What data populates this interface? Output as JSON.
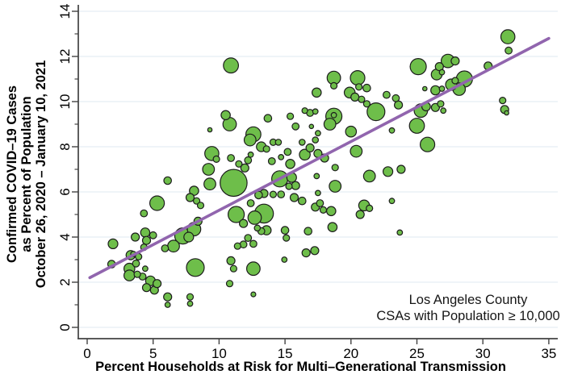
{
  "chart_data": {
    "type": "scatter",
    "title": "",
    "xlabel": "Percent Households at Risk for Multi–Generational Transmission",
    "ylabel_lines": [
      "Confirmed COVID–19 Cases",
      "as Percent of Population",
      "October 26, 2020 – January 10, 2021"
    ],
    "annotation": {
      "lines": [
        "Los Angeles County",
        "CSAs with Population ≥ 10,000"
      ]
    },
    "xlim": [
      0,
      35
    ],
    "ylim": [
      0,
      14
    ],
    "xticks": [
      0,
      5,
      10,
      15,
      20,
      25,
      30,
      35
    ],
    "yticks": [
      0,
      2,
      4,
      6,
      8,
      10,
      12,
      14
    ],
    "y_minor_ticks": [
      1,
      3,
      5,
      7,
      9,
      11,
      13
    ],
    "grid": "horizontal-major-y",
    "legend": "none",
    "colors": {
      "bubble_fill": "#6ebe4a",
      "bubble_stroke": "#1c1c1c",
      "trend": "#9165ae",
      "grid": "#dfeaf2",
      "axis": "#424242",
      "tick_text": "#000000"
    },
    "trend_line": {
      "x1": 0.2,
      "y1": 2.2,
      "x2": 35.0,
      "y2": 12.8
    },
    "points_format": [
      "x_percent_households_at_risk",
      "y_percent_cases",
      "bubble_radius_px"
    ],
    "points": [
      [
        10.9,
        11.6,
        9.3
      ],
      [
        10.5,
        9.4,
        5.7
      ],
      [
        10.8,
        9.0,
        8.3
      ],
      [
        9.3,
        8.75,
        2.7
      ],
      [
        9.45,
        7.7,
        8.7
      ],
      [
        9.8,
        7.45,
        4
      ],
      [
        10.9,
        7.5,
        4.3
      ],
      [
        11.5,
        7.24,
        4
      ],
      [
        11.95,
        7.06,
        5
      ],
      [
        12.2,
        7.4,
        4.3
      ],
      [
        12.4,
        7.65,
        3.3
      ],
      [
        14.0,
        7.36,
        4.3
      ],
      [
        14.7,
        7.54,
        3.3
      ],
      [
        15.2,
        7.77,
        4.3
      ],
      [
        15.4,
        7.24,
        5.7
      ],
      [
        17.4,
        6.7,
        3.3
      ],
      [
        20.4,
        7.8,
        7.3
      ],
      [
        23.8,
        7.0,
        5
      ],
      [
        18.7,
        11.05,
        8.3
      ],
      [
        18.7,
        10.7,
        4
      ],
      [
        20.5,
        11.05,
        9
      ],
      [
        20.6,
        10.65,
        4
      ],
      [
        21.2,
        10.6,
        4.7
      ],
      [
        17.4,
        10.4,
        5.7
      ],
      [
        19.9,
        10.4,
        6.7
      ],
      [
        20.3,
        10.2,
        5
      ],
      [
        20.8,
        10.1,
        4
      ],
      [
        22.7,
        10.3,
        4.3
      ],
      [
        23.4,
        10.15,
        4.3
      ],
      [
        21.2,
        9.9,
        4
      ],
      [
        21.9,
        9.55,
        11
      ],
      [
        18.7,
        9.35,
        10
      ],
      [
        18.7,
        9.4,
        3.3
      ],
      [
        18.4,
        9.0,
        7.3
      ],
      [
        20.0,
        8.67,
        6.7
      ],
      [
        17.3,
        9.56,
        3.3
      ],
      [
        16.5,
        9.6,
        3.5
      ],
      [
        17.0,
        8.9,
        2.7
      ],
      [
        17.5,
        8.6,
        3.3
      ],
      [
        23.1,
        8.72,
        3.3
      ],
      [
        23.6,
        9.85,
        5
      ],
      [
        13.7,
        9.26,
        4.7
      ],
      [
        15.4,
        9.35,
        4
      ],
      [
        16.9,
        9.5,
        4.3
      ],
      [
        15.8,
        8.9,
        4.3
      ],
      [
        12.6,
        8.55,
        9.3
      ],
      [
        12.35,
        8.3,
        7.3
      ],
      [
        13.2,
        8.0,
        6
      ],
      [
        14.1,
        8.2,
        4
      ],
      [
        14.5,
        8.2,
        3.7
      ],
      [
        13.6,
        7.9,
        4
      ],
      [
        16.3,
        8.2,
        3.7
      ],
      [
        17.3,
        8.3,
        3.7
      ],
      [
        16.9,
        7.95,
        5
      ],
      [
        17.5,
        7.7,
        5
      ],
      [
        16.5,
        7.65,
        6.7
      ],
      [
        18.0,
        7.5,
        5
      ],
      [
        25.1,
        11.55,
        10
      ],
      [
        27.35,
        11.8,
        8.3
      ],
      [
        27.9,
        11.8,
        5
      ],
      [
        26.7,
        11.55,
        5
      ],
      [
        26.5,
        11.2,
        6.7
      ],
      [
        26.9,
        11.3,
        3.3
      ],
      [
        28.6,
        11.0,
        10
      ],
      [
        27.6,
        10.75,
        7
      ],
      [
        27.9,
        10.93,
        4
      ],
      [
        28.2,
        10.55,
        7.7
      ],
      [
        25.6,
        10.57,
        2.7
      ],
      [
        26.4,
        10.5,
        5.7
      ],
      [
        26.9,
        10.57,
        3.3
      ],
      [
        30.4,
        11.58,
        5
      ],
      [
        25.7,
        9.78,
        5.3
      ],
      [
        26.4,
        9.74,
        5
      ],
      [
        26.8,
        9.9,
        4
      ],
      [
        25.3,
        9.6,
        8.3
      ],
      [
        27.0,
        9.6,
        3.3
      ],
      [
        25.0,
        8.93,
        9.3
      ],
      [
        25.8,
        8.1,
        9
      ],
      [
        31.9,
        12.87,
        8.7
      ],
      [
        31.95,
        12.26,
        4.3
      ],
      [
        31.5,
        10.05,
        4
      ],
      [
        31.65,
        9.65,
        5
      ],
      [
        31.8,
        9.5,
        2.7
      ],
      [
        14.6,
        6.58,
        10
      ],
      [
        15.5,
        6.64,
        6
      ],
      [
        15.8,
        6.28,
        5
      ],
      [
        15.3,
        6.25,
        4
      ],
      [
        18.8,
        7.08,
        4
      ],
      [
        18.8,
        6.25,
        7.3
      ],
      [
        21.4,
        6.7,
        7.3
      ],
      [
        22.8,
        6.9,
        6
      ],
      [
        13.4,
        5.93,
        5
      ],
      [
        14.1,
        5.89,
        4
      ],
      [
        14.7,
        5.89,
        4.3
      ],
      [
        15.7,
        5.75,
        5
      ],
      [
        16.3,
        5.6,
        4.7
      ],
      [
        17.5,
        5.95,
        3.3
      ],
      [
        17.3,
        5.33,
        5
      ],
      [
        17.65,
        5.5,
        4.3
      ],
      [
        17.9,
        5.2,
        4
      ],
      [
        18.5,
        5.15,
        5.7
      ],
      [
        21.0,
        5.4,
        6.7
      ],
      [
        21.4,
        5.27,
        4
      ],
      [
        20.7,
        5.0,
        5
      ],
      [
        23.1,
        5.6,
        3.3
      ],
      [
        23.7,
        4.2,
        3.3
      ],
      [
        12.4,
        5.5,
        4.3
      ],
      [
        13.0,
        5.86,
        4.7
      ],
      [
        11.1,
        6.4,
        16.7
      ],
      [
        11.3,
        5.0,
        10
      ],
      [
        12.7,
        4.86,
        8.3
      ],
      [
        13.4,
        5.04,
        11.7
      ],
      [
        11.85,
        4.6,
        5
      ],
      [
        9.3,
        6.35,
        7.3
      ],
      [
        9.2,
        7.0,
        7.3
      ],
      [
        8.1,
        6.05,
        5.7
      ],
      [
        7.8,
        5.75,
        5
      ],
      [
        8.3,
        5.6,
        4
      ],
      [
        8.6,
        5.4,
        4
      ],
      [
        6.1,
        6.5,
        4.7
      ],
      [
        5.3,
        5.5,
        9
      ],
      [
        4.3,
        5.05,
        4.3
      ],
      [
        13.6,
        4.3,
        5.7
      ],
      [
        13.2,
        4.26,
        4.3
      ],
      [
        12.9,
        4.4,
        3.7
      ],
      [
        15.0,
        4.3,
        4.7
      ],
      [
        15.1,
        3.96,
        4
      ],
      [
        16.75,
        4.26,
        4.7
      ],
      [
        18.6,
        4.44,
        5.7
      ],
      [
        12.2,
        3.96,
        4.3
      ],
      [
        12.6,
        3.7,
        4.3
      ],
      [
        11.85,
        3.67,
        4.3
      ],
      [
        11.4,
        3.6,
        4
      ],
      [
        16.6,
        3.3,
        5
      ],
      [
        17.25,
        3.4,
        5
      ],
      [
        14.95,
        3.0,
        3.3
      ],
      [
        12.6,
        2.6,
        8.3
      ],
      [
        12.6,
        1.46,
        3
      ],
      [
        10.9,
        2.95,
        5
      ],
      [
        11.1,
        2.6,
        4
      ],
      [
        10.8,
        1.94,
        4
      ],
      [
        8.2,
        2.65,
        11
      ],
      [
        4.4,
        4.2,
        5.7
      ],
      [
        5.0,
        4.08,
        4.3
      ],
      [
        3.65,
        4.0,
        5
      ],
      [
        1.96,
        3.7,
        6
      ],
      [
        4.3,
        3.55,
        4
      ],
      [
        4.5,
        3.85,
        5
      ],
      [
        6.55,
        3.6,
        7.3
      ],
      [
        5.9,
        3.5,
        4.3
      ],
      [
        7.25,
        4.05,
        10
      ],
      [
        7.7,
        4.0,
        6
      ],
      [
        8.1,
        4.35,
        8.3
      ],
      [
        8.4,
        4.7,
        5
      ],
      [
        3.3,
        3.2,
        5.7
      ],
      [
        3.5,
        3.25,
        3.3
      ],
      [
        3.9,
        3.13,
        4
      ],
      [
        3.7,
        2.83,
        4.3
      ],
      [
        1.85,
        2.8,
        4.7
      ],
      [
        3.2,
        2.6,
        6.7
      ],
      [
        3.2,
        2.3,
        6.7
      ],
      [
        3.8,
        2.35,
        4
      ],
      [
        4.2,
        2.25,
        4.3
      ],
      [
        4.4,
        2.6,
        3.3
      ],
      [
        4.8,
        2.06,
        6
      ],
      [
        4.5,
        1.76,
        5
      ],
      [
        5.1,
        1.65,
        5
      ],
      [
        5.3,
        1.94,
        5
      ],
      [
        6.1,
        1.35,
        5
      ],
      [
        6.1,
        1.0,
        3.3
      ],
      [
        7.8,
        1.35,
        4
      ],
      [
        7.8,
        1.05,
        3.3
      ]
    ]
  }
}
